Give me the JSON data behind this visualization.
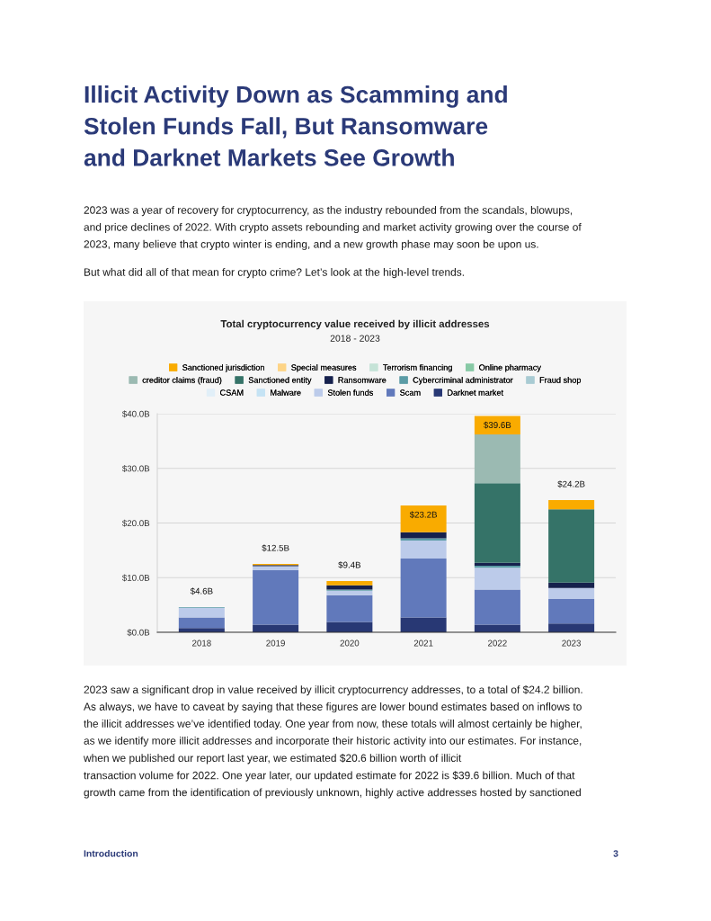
{
  "chart_data": {
    "type": "bar",
    "stacked": true,
    "title": "Total cryptocurrency value received by illicit addresses",
    "subtitle": "2018 - 2023",
    "categories": [
      "2018",
      "2019",
      "2020",
      "2021",
      "2022",
      "2023"
    ],
    "series": [
      {
        "name": "Darknet market",
        "color": "#283874",
        "values": [
          0.8,
          1.4,
          1.9,
          2.7,
          1.4,
          1.6
        ]
      },
      {
        "name": "Scam",
        "color": "#6179bb",
        "values": [
          1.9,
          10.0,
          4.9,
          10.8,
          6.4,
          4.5
        ]
      },
      {
        "name": "Stolen funds",
        "color": "#bccbea",
        "values": [
          1.8,
          0.7,
          0.8,
          3.3,
          4.0,
          2.0
        ]
      },
      {
        "name": "Malware",
        "color": "#c5e3f4",
        "values": [
          0,
          0,
          0,
          0,
          0,
          0
        ]
      },
      {
        "name": "CSAM",
        "color": "#e1eff8",
        "values": [
          0,
          0,
          0,
          0,
          0,
          0
        ]
      },
      {
        "name": "Fraud shop",
        "color": "#a9cbd3",
        "values": [
          0,
          0,
          0,
          0,
          0,
          0
        ]
      },
      {
        "name": "Cybercriminal administrator",
        "color": "#5b9ca6",
        "values": [
          0.1,
          0,
          0.2,
          0.4,
          0.4,
          0
        ]
      },
      {
        "name": "Ransomware",
        "color": "#16214d",
        "values": [
          0,
          0.2,
          0.8,
          1.1,
          0.5,
          1.0
        ]
      },
      {
        "name": "Sanctioned entity",
        "color": "#357368",
        "values": [
          0,
          0,
          0,
          0,
          14.6,
          13.4
        ]
      },
      {
        "name": "creditor claims (fraud)",
        "color": "#9bbab2",
        "values": [
          0,
          0,
          0,
          0,
          8.9,
          0
        ]
      },
      {
        "name": "Online pharmacy",
        "color": "#87c9a5",
        "values": [
          0,
          0,
          0,
          0,
          0,
          0
        ]
      },
      {
        "name": "Terrorism financing",
        "color": "#c5e3d7",
        "values": [
          0,
          0,
          0,
          0,
          0,
          0
        ]
      },
      {
        "name": "Special measures",
        "color": "#fdd486",
        "values": [
          0,
          0,
          0,
          0,
          0,
          0
        ]
      },
      {
        "name": "Sanctioned jurisdiction",
        "color": "#f9ab00",
        "values": [
          0,
          0.2,
          0.8,
          4.9,
          3.4,
          1.7
        ]
      }
    ],
    "totals": [
      "$4.6B",
      "$12.5B",
      "$9.4B",
      "$23.2B",
      "$39.6B",
      "$24.2B"
    ],
    "ylim": [
      0,
      40
    ],
    "yticks": [
      {
        "value": 0,
        "label": "$0.0B"
      },
      {
        "value": 10,
        "label": "$10.0B"
      },
      {
        "value": 20,
        "label": "$20.0B"
      },
      {
        "value": 30,
        "label": "$30.0B"
      },
      {
        "value": 40,
        "label": "$40.0B"
      }
    ],
    "grid": "y",
    "legend": "top",
    "annotations": [
      "Illicit Activity Down as Scamming and\nStolen Funds Fall, But Ransomware\nand Darknet Markets See Growth",
      "2023 was a year of recovery for cryptocurrency, as the industry rebounded from the scandals, blowups,\nand price declines of 2022. With crypto assets rebounding and market activity growing over the course of\n2023, many believe that crypto winter is ending, and a new growth phase may soon be upon us.",
      "But what did all of that mean for crypto crime? Let’s look at the high-level trends.",
      "2023 saw a significant drop in value received by illicit cryptocurrency addresses, to a total of $24.2 billion.\nAs always, we have to caveat by saying that these figures are lower bound estimates based on inflows to\nthe illicit addresses we’ve identified today. One year from now, these totals will almost certainly be higher,\nas we identify more illicit addresses and incorporate their historic activity into our estimates. For instance,\nwhen we published our report last year, we estimated $20.6 billion worth of illicit\ntransaction volume for 2022. One year later, our updated estimate for 2022 is $39.6 billion. Much of that\ngrowth came from the identification of previously unknown, highly active addresses hosted by sanctioned",
      "Introduction",
      "3"
    ]
  }
}
